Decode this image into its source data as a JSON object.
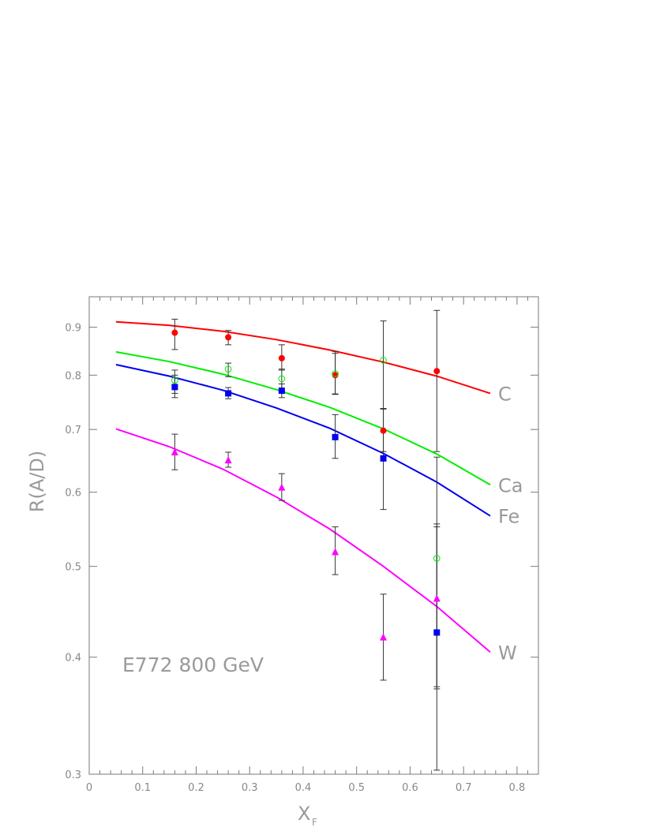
{
  "chart_data": {
    "type": "scatter",
    "xlabel": "X",
    "xlabel_sub": "F",
    "ylabel": "R(A/D)",
    "xlim": [
      0,
      0.84
    ],
    "ylim": [
      0.3,
      0.97
    ],
    "yscale": "log",
    "x_ticks": [
      "0",
      "0.1",
      "0.2",
      "0.3",
      "0.4",
      "0.5",
      "0.6",
      "0.7",
      "0.8"
    ],
    "y_ticks": [
      "0.3",
      "0.4",
      "0.5",
      "0.6",
      "0.7",
      "0.8",
      "0.9"
    ],
    "annotation": "E772  800 GeV",
    "series": [
      {
        "name": "C",
        "color": "#ff0000",
        "marker": "filled-circle",
        "points": [
          {
            "x": 0.16,
            "y": 0.888,
            "lo": 0.852,
            "hi": 0.918
          },
          {
            "x": 0.26,
            "y": 0.878,
            "lo": 0.862,
            "hi": 0.893
          },
          {
            "x": 0.36,
            "y": 0.834,
            "lo": 0.81,
            "hi": 0.862
          },
          {
            "x": 0.46,
            "y": 0.8,
            "lo": 0.764,
            "hi": 0.848
          },
          {
            "x": 0.55,
            "y": 0.698,
            "lo": 0.663,
            "hi": 0.737
          },
          {
            "x": 0.65,
            "y": 0.808,
            "lo": 0.663,
            "hi": 0.938
          }
        ],
        "curve": {
          "x": [
            0.05,
            0.15,
            0.25,
            0.35,
            0.45,
            0.55,
            0.65,
            0.75
          ],
          "y": [
            0.912,
            0.904,
            0.891,
            0.873,
            0.851,
            0.826,
            0.798,
            0.765
          ]
        }
      },
      {
        "name": "Ca",
        "color": "#00ee00",
        "marker": "open-circle",
        "points": [
          {
            "x": 0.16,
            "y": 0.79,
            "lo": 0.765,
            "hi": 0.81
          },
          {
            "x": 0.26,
            "y": 0.812,
            "lo": 0.797,
            "hi": 0.824
          },
          {
            "x": 0.36,
            "y": 0.793,
            "lo": 0.77,
            "hi": 0.812
          },
          {
            "x": 0.46,
            "y": 0.803,
            "lo": 0.763,
            "hi": 0.844
          },
          {
            "x": 0.55,
            "y": 0.83,
            "lo": 0.737,
            "hi": 0.914
          },
          {
            "x": 0.65,
            "y": 0.51,
            "lo": 0.37,
            "hi": 0.654
          }
        ],
        "curve": {
          "x": [
            0.05,
            0.15,
            0.25,
            0.35,
            0.45,
            0.55,
            0.65,
            0.75
          ],
          "y": [
            0.847,
            0.827,
            0.802,
            0.772,
            0.739,
            0.701,
            0.659,
            0.611
          ]
        }
      },
      {
        "name": "Fe",
        "color": "#0000ee",
        "marker": "filled-square",
        "points": [
          {
            "x": 0.16,
            "y": 0.777,
            "lo": 0.757,
            "hi": 0.8
          },
          {
            "x": 0.26,
            "y": 0.765,
            "lo": 0.755,
            "hi": 0.776
          },
          {
            "x": 0.36,
            "y": 0.77,
            "lo": 0.757,
            "hi": 0.783
          },
          {
            "x": 0.46,
            "y": 0.687,
            "lo": 0.652,
            "hi": 0.726
          },
          {
            "x": 0.55,
            "y": 0.652,
            "lo": 0.575,
            "hi": 0.736
          },
          {
            "x": 0.65,
            "y": 0.425,
            "lo": 0.303,
            "hi": 0.551
          }
        ],
        "curve": {
          "x": [
            0.05,
            0.15,
            0.25,
            0.35,
            0.45,
            0.55,
            0.65,
            0.75
          ],
          "y": [
            0.821,
            0.798,
            0.771,
            0.738,
            0.702,
            0.66,
            0.615,
            0.566
          ]
        }
      },
      {
        "name": "W",
        "color": "#ff00ff",
        "marker": "filled-triangle",
        "points": [
          {
            "x": 0.16,
            "y": 0.662,
            "lo": 0.634,
            "hi": 0.692
          },
          {
            "x": 0.26,
            "y": 0.649,
            "lo": 0.638,
            "hi": 0.662
          },
          {
            "x": 0.36,
            "y": 0.607,
            "lo": 0.588,
            "hi": 0.628
          },
          {
            "x": 0.46,
            "y": 0.518,
            "lo": 0.49,
            "hi": 0.551
          },
          {
            "x": 0.55,
            "y": 0.42,
            "lo": 0.378,
            "hi": 0.467
          },
          {
            "x": 0.65,
            "y": 0.462,
            "lo": 0.372,
            "hi": 0.555
          }
        ],
        "curve": {
          "x": [
            0.05,
            0.15,
            0.25,
            0.35,
            0.45,
            0.55,
            0.65,
            0.75
          ],
          "y": [
            0.701,
            0.671,
            0.635,
            0.593,
            0.548,
            0.5,
            0.453,
            0.405
          ]
        }
      }
    ]
  }
}
